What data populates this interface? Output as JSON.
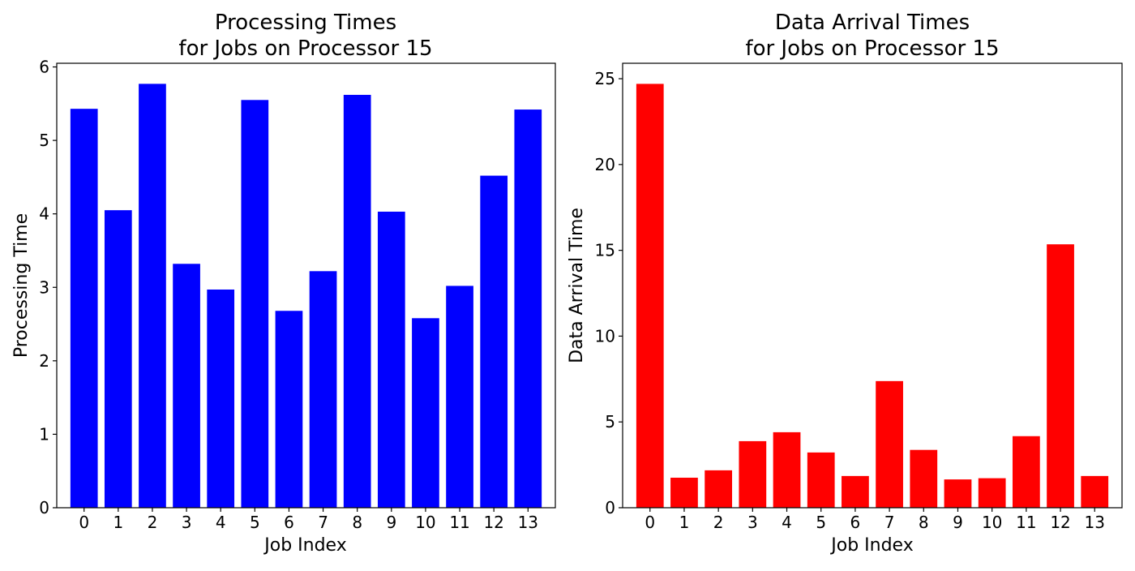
{
  "chart_data": [
    {
      "type": "bar",
      "title_line1": "Processing Times",
      "title_line2": "for Jobs on Processor 15",
      "xlabel": "Job Index",
      "ylabel": "Processing Time",
      "categories": [
        "0",
        "1",
        "2",
        "3",
        "4",
        "5",
        "6",
        "7",
        "8",
        "9",
        "10",
        "11",
        "12",
        "13"
      ],
      "values": [
        5.43,
        4.05,
        5.77,
        3.32,
        2.97,
        5.55,
        2.68,
        3.22,
        5.62,
        4.03,
        2.58,
        3.02,
        4.52,
        5.42
      ],
      "yticks": [
        0,
        1,
        2,
        3,
        4,
        5,
        6
      ],
      "ylim": [
        0,
        6.05
      ],
      "color": "#0000ff",
      "grid": false
    },
    {
      "type": "bar",
      "title_line1": "Data Arrival Times",
      "title_line2": "for Jobs on Processor 15",
      "xlabel": "Job Index",
      "ylabel": "Data Arrival Time",
      "categories": [
        "0",
        "1",
        "2",
        "3",
        "4",
        "5",
        "6",
        "7",
        "8",
        "9",
        "10",
        "11",
        "12",
        "13"
      ],
      "values": [
        24.7,
        1.75,
        2.18,
        3.88,
        4.4,
        3.22,
        1.85,
        7.38,
        3.37,
        1.65,
        1.72,
        4.17,
        15.35,
        1.85
      ],
      "yticks": [
        0,
        5,
        10,
        15,
        20,
        25
      ],
      "ylim": [
        0,
        25.9
      ],
      "color": "#ff0000",
      "grid": false
    }
  ]
}
